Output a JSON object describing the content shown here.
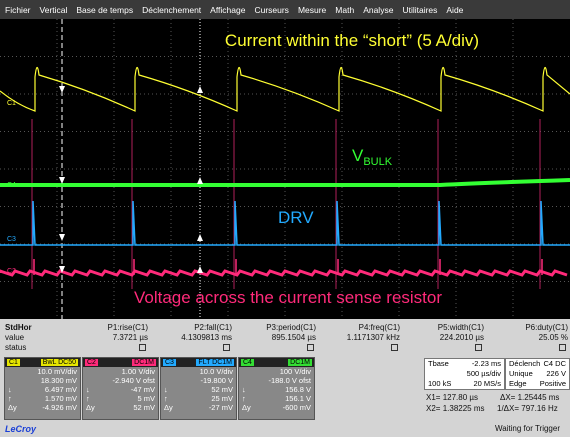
{
  "menu": [
    "Fichier",
    "Vertical",
    "Base de temps",
    "Déclenchement",
    "Affichage",
    "Curseurs",
    "Mesure",
    "Math",
    "Analyse",
    "Utilitaires",
    "Aide"
  ],
  "annotations": {
    "current": "Current within the “short” (5 A/div)",
    "vbulk": "V",
    "vbulk_sub": "BULK",
    "drv": "DRV",
    "sense": "Voltage across the current sense resistor"
  },
  "trace_labels": [
    "C1",
    "C2",
    "C3",
    "C4"
  ],
  "measurements": {
    "row_labels": [
      "StdHor",
      "value",
      "status"
    ],
    "params": [
      {
        "name": "P1:rise(C1)",
        "value": "7.3721 µs"
      },
      {
        "name": "P2:fall(C1)",
        "value": "4.1309813 ms"
      },
      {
        "name": "P3:period(C1)",
        "value": "895.1504 µs"
      },
      {
        "name": "P4:freq(C1)",
        "value": "1.1171307 kHz"
      },
      {
        "name": "P5:width(C1)",
        "value": "224.2010 µs"
      },
      {
        "name": "P6:duty(C1)",
        "value": "25.05 %"
      }
    ]
  },
  "channels": [
    {
      "label": "C1",
      "coupling": "BwL DC50",
      "scale": "10.0 mV/div",
      "offset": "18.300 mV",
      "rows": [
        [
          "↓",
          "6.497 mV"
        ],
        [
          "↑",
          "1.570 mV"
        ],
        [
          "Δy",
          "-4.926 mV"
        ]
      ]
    },
    {
      "label": "C2",
      "coupling": "DC1M",
      "scale": "1.00 V/div",
      "offset": "-2.940 V ofst",
      "rows": [
        [
          "↓",
          "-47 mV"
        ],
        [
          "↑",
          "5 mV"
        ],
        [
          "Δy",
          "52 mV"
        ]
      ]
    },
    {
      "label": "C3",
      "coupling": "FLT DC1M",
      "scale": "10.0 V/div",
      "offset": "-19.800 V",
      "rows": [
        [
          "↓",
          "52 mV"
        ],
        [
          "↑",
          "25 mV"
        ],
        [
          "Δy",
          "-27 mV"
        ]
      ]
    },
    {
      "label": "C4",
      "coupling": "DC1M",
      "scale": "100 V/div",
      "offset": "-188.0 V ofst",
      "rows": [
        [
          "↓",
          "156.8 V"
        ],
        [
          "↑",
          "156.1 V"
        ],
        [
          "Δy",
          "-600 mV"
        ]
      ]
    }
  ],
  "timebase": {
    "label": "Tbase",
    "delay": "-2.23 ms",
    "scale": "500 µs/div",
    "samples": "100 kS",
    "rate": "20 MS/s"
  },
  "trigger": {
    "label": "Déclench",
    "source": "C4 DC",
    "mode": "Unique",
    "level": "226 V",
    "type": "Edge",
    "slope": "Positive"
  },
  "cursors": {
    "x1_label": "X1=",
    "x1": "127.80 µs",
    "dx_label": "ΔX=",
    "dx": "1.25445 ms",
    "x2_label": "X2=",
    "x2": "1.38225 ms",
    "inv_label": "1/ΔX=",
    "inv": "797.16 Hz"
  },
  "footer": {
    "brand": "LeCroy",
    "status": "Waiting for Trigger"
  }
}
